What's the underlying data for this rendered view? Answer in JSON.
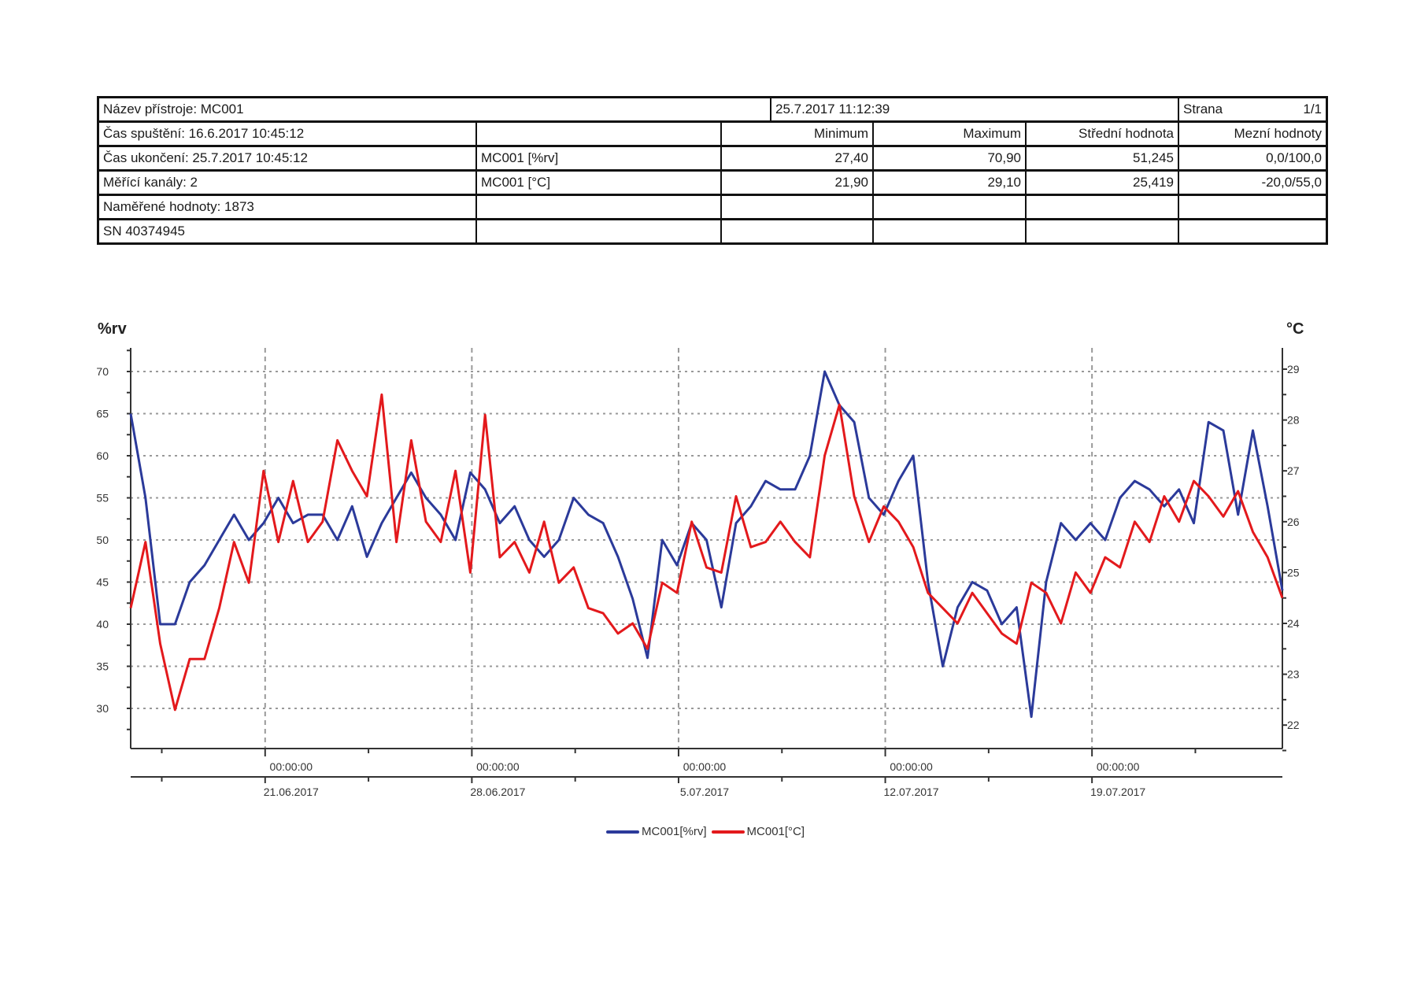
{
  "header": {
    "device_name": "Název přístroje: MC001",
    "report_datetime": "25.7.2017 11:12:39",
    "page_label": "Strana",
    "page_value": "1/1",
    "start_time": "Čas spuštění: 16.6.2017 10:45:12",
    "end_time": "Čas ukončení: 25.7.2017 10:45:12",
    "channels": "Měřící kanály: 2",
    "measured_values": "Naměřené hodnoty: 1873",
    "serial": "SN 40374945",
    "columns": [
      "Minimum",
      "Maximum",
      "Střední hodnota",
      "Mezní hodnoty"
    ],
    "rows": [
      {
        "name": "MC001 [%rv]",
        "min": "27,40",
        "max": "70,90",
        "mean": "51,245",
        "limits": "0,0/100,0"
      },
      {
        "name": "MC001 [°C]",
        "min": "21,90",
        "max": "29,10",
        "mean": "25,419",
        "limits": "-20,0/55,0"
      }
    ]
  },
  "chart_data": {
    "type": "line",
    "x_unit": "days since 16.06.2017 10:45",
    "x_step_days": 0.5,
    "x_range_days": [
      0,
      39
    ],
    "left_axis": {
      "label": "%rv",
      "ticks": [
        30,
        35,
        40,
        45,
        50,
        55,
        60,
        65,
        70
      ],
      "range": [
        25.5,
        73
      ]
    },
    "right_axis": {
      "label": "°C",
      "ticks": [
        22,
        23,
        24,
        25,
        26,
        27,
        28,
        29
      ],
      "range": [
        21.6,
        29.45
      ]
    },
    "x_ticks": [
      {
        "time": "00:00:00",
        "date": "21.06.2017",
        "day": 4.553
      },
      {
        "time": "00:00:00",
        "date": "28.06.2017",
        "day": 11.553
      },
      {
        "time": "00:00:00",
        "date": "5.07.2017",
        "day": 18.553
      },
      {
        "time": "00:00:00",
        "date": "12.07.2017",
        "day": 25.553
      },
      {
        "time": "00:00:00",
        "date": "19.07.2017",
        "day": 32.553
      }
    ],
    "grid": true,
    "legend_position": "bottom-center",
    "series": [
      {
        "name": "MC001[%rv]",
        "axis": "left",
        "color": "#2b3a9a",
        "values": [
          65,
          55,
          40,
          40,
          45,
          47,
          50,
          53,
          50,
          52,
          55,
          52,
          53,
          53,
          50,
          54,
          48,
          52,
          55,
          58,
          55,
          53,
          50,
          58,
          56,
          52,
          54,
          50,
          48,
          50,
          55,
          53,
          52,
          48,
          43,
          36,
          50,
          47,
          52,
          50,
          42,
          52,
          54,
          57,
          56,
          56,
          60,
          70,
          66,
          64,
          55,
          53,
          57,
          60,
          45,
          35,
          42,
          45,
          44,
          40,
          42,
          29,
          45,
          52,
          50,
          52,
          50,
          55,
          57,
          56,
          54,
          56,
          52,
          64,
          63,
          53,
          63,
          54,
          44
        ]
      },
      {
        "name": "MC001[°C]",
        "axis": "right",
        "color": "#e3191c",
        "values": [
          24.3,
          25.6,
          23.6,
          22.3,
          23.3,
          23.3,
          24.3,
          25.6,
          24.8,
          27.0,
          25.6,
          26.8,
          25.6,
          26.0,
          27.6,
          27.0,
          26.5,
          28.5,
          25.6,
          27.6,
          26.0,
          25.6,
          27.0,
          25.0,
          28.1,
          25.3,
          25.6,
          25.0,
          26.0,
          24.8,
          25.1,
          24.3,
          24.2,
          23.8,
          24.0,
          23.5,
          24.8,
          24.6,
          26.0,
          25.1,
          25.0,
          26.5,
          25.5,
          25.6,
          26.0,
          25.6,
          25.3,
          27.3,
          28.3,
          26.5,
          25.6,
          26.3,
          26.0,
          25.5,
          24.6,
          24.3,
          24.0,
          24.6,
          24.2,
          23.8,
          23.6,
          24.8,
          24.6,
          24.0,
          25.0,
          24.6,
          25.3,
          25.1,
          26.0,
          25.6,
          26.5,
          26.0,
          26.8,
          26.5,
          26.1,
          26.6,
          25.8,
          25.3,
          24.5
        ]
      }
    ]
  }
}
